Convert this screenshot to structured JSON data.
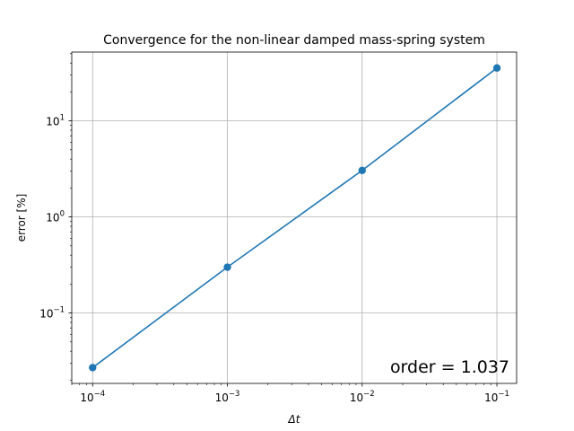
{
  "colors": {
    "series": "#1f77b4",
    "grid": "#b0b0b0",
    "axes": "#000000",
    "background": "#ffffff"
  },
  "chart_data": {
    "type": "line",
    "title": "Convergence for the non-linear damped mass-spring system",
    "xlabel": "Δt",
    "ylabel": "error [%]",
    "xscale": "log",
    "yscale": "log",
    "xlim": [
      7e-05,
      0.14
    ],
    "ylim": [
      0.0185,
      52
    ],
    "grid": true,
    "marker": "circle",
    "series": [
      {
        "x": [
          0.0001,
          0.001,
          0.01,
          0.1
        ],
        "y": [
          0.027,
          0.3,
          3.05,
          35.5
        ]
      }
    ],
    "xticks": [
      {
        "value": 0.0001,
        "base": "10",
        "exp": "−4"
      },
      {
        "value": 0.001,
        "base": "10",
        "exp": "−3"
      },
      {
        "value": 0.01,
        "base": "10",
        "exp": "−2"
      },
      {
        "value": 0.1,
        "base": "10",
        "exp": "−1"
      }
    ],
    "yticks": [
      {
        "value": 0.1,
        "base": "10",
        "exp": "−1"
      },
      {
        "value": 1,
        "base": "10",
        "exp": "0"
      },
      {
        "value": 10,
        "base": "10",
        "exp": "1"
      }
    ],
    "annotation": {
      "text": "order = 1.037",
      "placement": "bottom-right"
    }
  }
}
